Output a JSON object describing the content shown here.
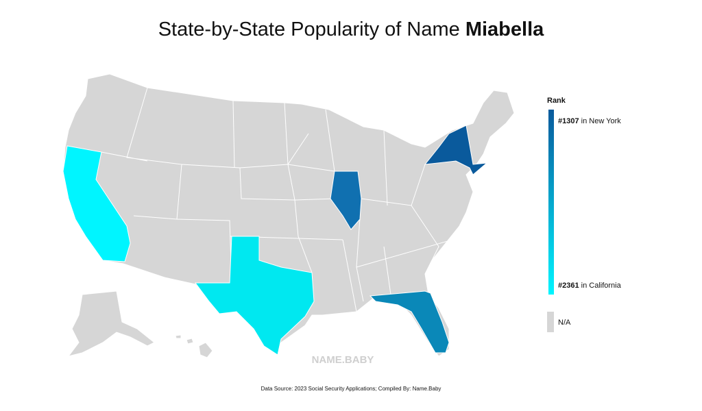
{
  "title": {
    "text": "State-by-State Popularity of Name",
    "name": "Miabella"
  },
  "legend": {
    "title": "Rank",
    "top": {
      "rank": "#1307",
      "place": "in New York",
      "color": "#0a5a9c"
    },
    "bottom": {
      "rank": "#2361",
      "place": "in California",
      "color": "#00f5ff"
    },
    "na": {
      "label": "N/A",
      "color": "#d6d6d6"
    }
  },
  "watermark": "NAME.BABY",
  "source": "Data Source: 2023 Social Security Applications; Compiled By: Name.Baby"
}
